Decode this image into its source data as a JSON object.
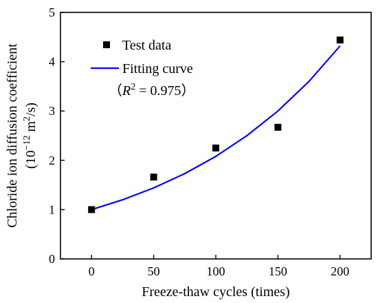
{
  "chart_data": {
    "type": "scatter",
    "xlabel": "Freeze-thaw cycles (times)",
    "ylabel": {
      "line1": "Chloride ion diffusion coefficient",
      "line2_prefix": "(10",
      "line2_exp": "−12",
      "line2_mid": " m",
      "line2_exp2": "2",
      "line2_suffix": "/s)"
    },
    "xlim": [
      -25,
      225
    ],
    "ylim": [
      0,
      5
    ],
    "xticks": [
      0,
      50,
      100,
      150,
      200
    ],
    "yticks": [
      0,
      1,
      2,
      3,
      4,
      5
    ],
    "grid": false,
    "legend_position": "top-left",
    "series": [
      {
        "name": "Test data",
        "kind": "points",
        "color": "#000000",
        "marker": "square",
        "x": [
          0,
          50,
          100,
          150,
          200
        ],
        "y": [
          1.0,
          1.66,
          2.25,
          2.67,
          4.44
        ]
      },
      {
        "name": "Fitting curve",
        "kind": "line",
        "color": "#0000ff",
        "x": [
          0,
          25,
          50,
          75,
          100,
          125,
          150,
          175,
          200
        ],
        "y": [
          1.0,
          1.2,
          1.44,
          1.73,
          2.08,
          2.5,
          3.0,
          3.6,
          4.32
        ]
      }
    ],
    "annotation": {
      "open": "（",
      "var": "R",
      "exp": "2",
      "rest": " = 0.975",
      "close": "）"
    }
  }
}
